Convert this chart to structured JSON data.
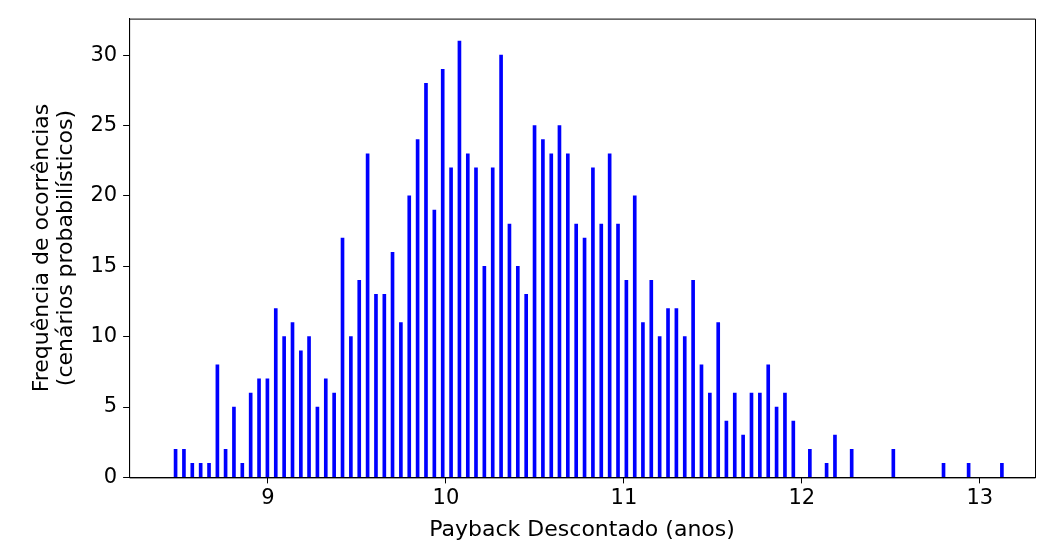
{
  "chart_data": {
    "type": "bar",
    "xlabel": "Payback Descontado (anos)",
    "ylabel": "Frequência de ocorrências\n(cenários probabilísticos)",
    "color": "#0000ff",
    "x": [
      8.481,
      8.528,
      8.575,
      8.622,
      8.669,
      8.716,
      8.762,
      8.809,
      8.856,
      8.903,
      8.95,
      8.997,
      9.044,
      9.091,
      9.138,
      9.185,
      9.231,
      9.278,
      9.325,
      9.372,
      9.419,
      9.466,
      9.513,
      9.56,
      9.607,
      9.654,
      9.7,
      9.747,
      9.794,
      9.841,
      9.888,
      9.935,
      9.982,
      10.029,
      10.076,
      10.123,
      10.169,
      10.216,
      10.263,
      10.31,
      10.357,
      10.404,
      10.451,
      10.498,
      10.545,
      10.592,
      10.638,
      10.685,
      10.732,
      10.779,
      10.826,
      10.873,
      10.92,
      10.967,
      11.014,
      11.061,
      11.107,
      11.154,
      11.201,
      11.248,
      11.295,
      11.342,
      11.389,
      11.436,
      11.483,
      11.53,
      11.576,
      11.623,
      11.67,
      11.717,
      11.764,
      11.811,
      11.858,
      11.905,
      11.952,
      12.045,
      12.139,
      12.186,
      12.28,
      12.514,
      12.796,
      12.937,
      13.124
    ],
    "values": [
      2,
      2,
      1,
      1,
      1,
      8,
      2,
      5,
      1,
      6,
      7,
      7,
      12,
      10,
      11,
      9,
      10,
      5,
      7,
      6,
      17,
      10,
      14,
      23,
      13,
      13,
      16,
      11,
      20,
      24,
      28,
      19,
      29,
      22,
      31,
      23,
      22,
      15,
      22,
      30,
      18,
      15,
      13,
      25,
      24,
      23,
      25,
      23,
      18,
      17,
      22,
      18,
      23,
      18,
      14,
      20,
      11,
      14,
      10,
      12,
      12,
      10,
      14,
      8,
      6,
      11,
      4,
      6,
      3,
      6,
      6,
      8,
      5,
      6,
      4,
      2,
      1,
      3,
      2,
      2,
      1,
      1,
      1
    ],
    "xlim": [
      8.22,
      13.31
    ],
    "xticks": [
      9,
      10,
      11,
      12,
      13
    ],
    "ylim": [
      0,
      32.6
    ],
    "yticks": [
      0,
      5,
      10,
      15,
      20,
      25,
      30
    ]
  }
}
